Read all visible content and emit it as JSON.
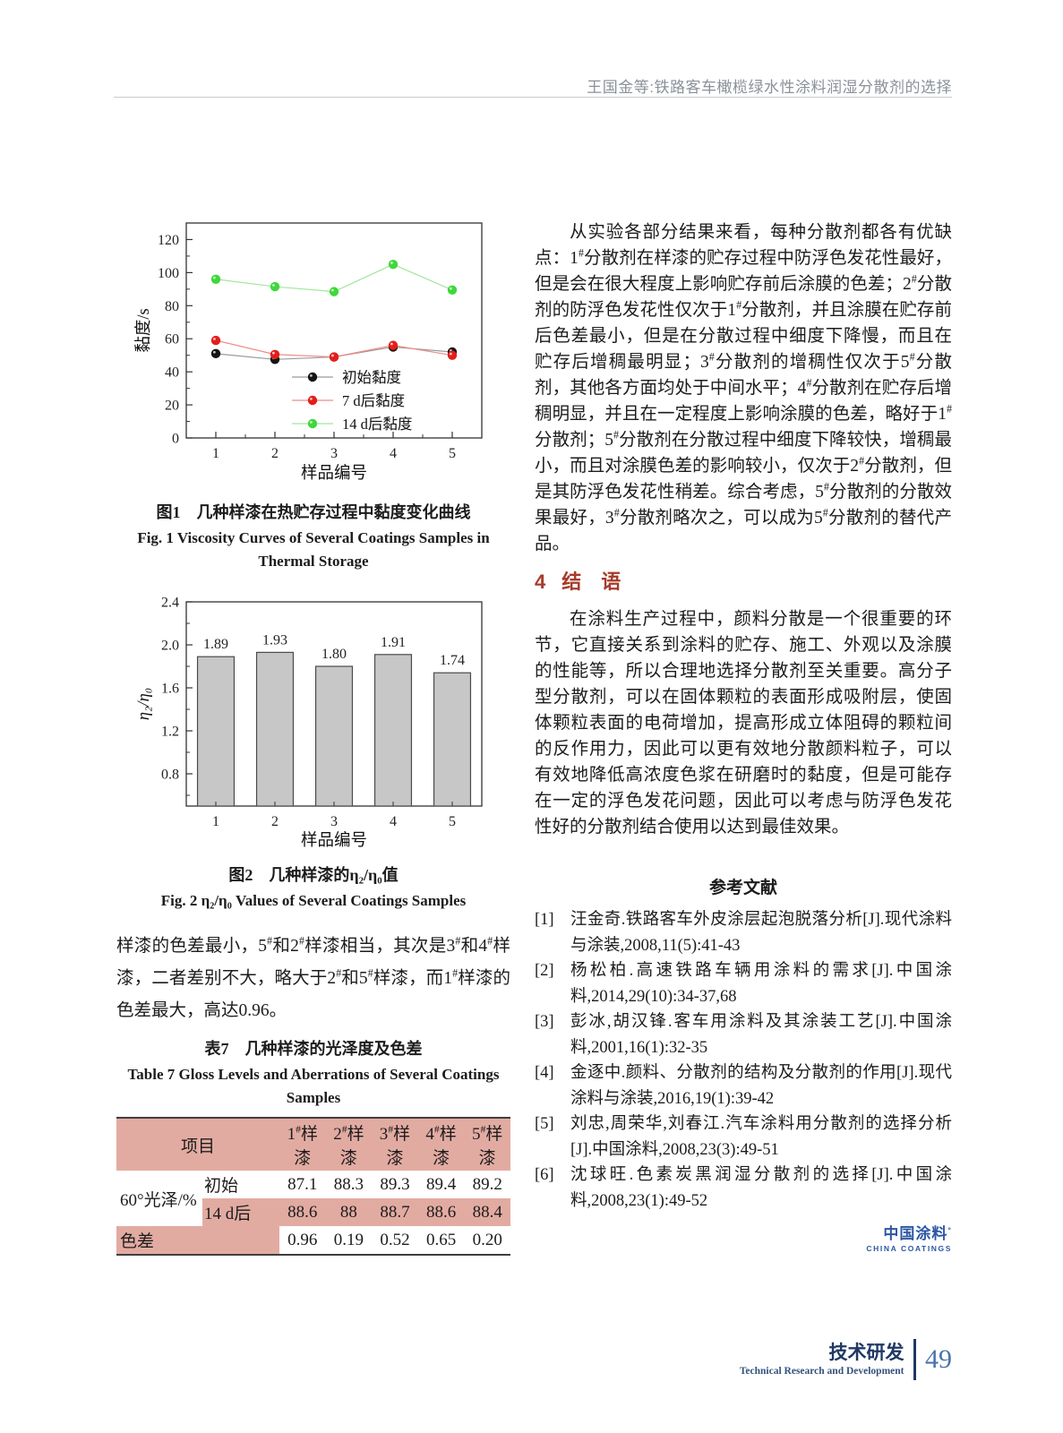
{
  "header": {
    "running_title": "王国金等:铁路客车橄榄绿水性涂料润湿分散剂的选择"
  },
  "colors": {
    "section_heading": "#a63b2a",
    "table_pink": "#e2aba2",
    "logo_blue": "#2b57a5",
    "footer_navy": "#1f3864",
    "page_number_blue": "#4a74ad"
  },
  "chart_data": [
    {
      "type": "line",
      "x": [
        1,
        2,
        3,
        4,
        5
      ],
      "xlabel": "样品编号",
      "ylabel": "黏度/s",
      "ylim": [
        0,
        130
      ],
      "yticks": [
        0,
        20,
        40,
        60,
        80,
        100,
        120
      ],
      "grid": false,
      "legend_position": "inside-bottom-right",
      "series": [
        {
          "name": "初始黏度",
          "color": "#141414",
          "line_color": "#9a9a9a",
          "values": [
            51,
            47.5,
            49,
            55,
            52
          ]
        },
        {
          "name": "7 d后黏度",
          "color": "#e31e1b",
          "line_color": "#ef8a86",
          "values": [
            59,
            50.5,
            49,
            56,
            50
          ]
        },
        {
          "name": "14 d后黏度",
          "color": "#3fd83a",
          "line_color": "#a2e79e",
          "values": [
            96,
            91.5,
            88.5,
            105,
            89.5
          ]
        }
      ]
    },
    {
      "type": "bar",
      "categories": [
        "1",
        "2",
        "3",
        "4",
        "5"
      ],
      "values": [
        1.89,
        1.93,
        1.8,
        1.91,
        1.74
      ],
      "value_labels": [
        "1.89",
        "1.93",
        "1.80",
        "1.91",
        "1.74"
      ],
      "xlabel": "样品编号",
      "ylabel": "η₂/η₀",
      "ylim": [
        0.5,
        2.4
      ],
      "yticks": [
        0.8,
        1.2,
        1.6,
        2.0,
        2.4
      ],
      "grid": false,
      "bar_color": "#c7c7c7",
      "bar_border": "#4a4a4a"
    }
  ],
  "left": {
    "fig1": {
      "caption_cn": "图1　几种样漆在热贮存过程中黏度变化曲线",
      "caption_en": "Fig. 1  Viscosity Curves of Several Coatings Samples in Thermal Storage"
    },
    "fig2": {
      "caption_cn": "图2　几种样漆的η₂/η₀值",
      "caption_en": "Fig. 2  η₂/η₀ Values of Several Coatings Samples"
    },
    "paragraph": "样漆的色差最小，5^#和2^#样漆相当，其次是3^#和4^#样漆，二者差别不大，略大于2^#和5^#样漆，而1^#样漆的色差最大，高达0.96。",
    "table7": {
      "caption_cn": "表7　几种样漆的光泽度及色差",
      "caption_en": "Table 7  Gloss Levels and Aberrations of Several Coatings Samples",
      "header": [
        "项目",
        "1^#样漆",
        "2^#样漆",
        "3^#样漆",
        "4^#样漆",
        "5^#样漆"
      ],
      "group_label": "60°光泽/%",
      "rows": [
        {
          "label": "初始",
          "values": [
            "87.1",
            "88.3",
            "89.3",
            "89.4",
            "89.2"
          ]
        },
        {
          "label": "14 d后",
          "values": [
            "88.6",
            "88",
            "88.7",
            "88.6",
            "88.4"
          ]
        }
      ],
      "aberration": {
        "label": "色差",
        "values": [
          "0.96",
          "0.19",
          "0.52",
          "0.65",
          "0.20"
        ]
      }
    }
  },
  "right": {
    "para1": "从实验各部分结果来看，每种分散剂都各有优缺点：1^#分散剂在样漆的贮存过程中防浮色发花性最好，但是会在很大程度上影响贮存前后涂膜的色差；2^#分散剂的防浮色发花性仅次于1^#分散剂，并且涂膜在贮存前后色差最小，但是在分散过程中细度下降慢，而且在贮存后增稠最明显；3^#分散剂的增稠性仅次于5^#分散剂，其他各方面均处于中间水平；4^#分散剂在贮存后增稠明显，并且在一定程度上影响涂膜的色差，略好于1^#分散剂；5^#分散剂在分散过程中细度下降较快，增稠最小，而且对涂膜色差的影响较小，仅次于2^#分散剂，但是其防浮色发花性稍差。综合考虑，5^#分散剂的分散效果最好，3^#分散剂略次之，可以成为5^#分散剂的替代产品。",
    "section4": {
      "number": "4",
      "title": "结　语",
      "body": "在涂料生产过程中，颜料分散是一个很重要的环节，它直接关系到涂料的贮存、施工、外观以及涂膜的性能等，所以合理地选择分散剂至关重要。高分子型分散剂，可以在固体颗粒的表面形成吸附层，使固体颗粒表面的电荷增加，提高形成立体阻碍的颗粒间的反作用力，因此可以更有效地分散颜料粒子，可以有效地降低高浓度色浆在研磨时的黏度，但是可能存在一定的浮色发花问题，因此可以考虑与防浮色发花性好的分散剂结合使用以达到最佳效果。"
    },
    "references": {
      "title": "参考文献",
      "items": [
        {
          "num": "[1]",
          "text": "汪金奇.铁路客车外皮涂层起泡脱落分析[J].现代涂料与涂装,2008,11(5):41-43"
        },
        {
          "num": "[2]",
          "text": "杨松柏.高速铁路车辆用涂料的需求[J].中国涂料,2014,29(10):34-37,68"
        },
        {
          "num": "[3]",
          "text": "彭冰,胡汉锋.客车用涂料及其涂装工艺[J].中国涂料,2001,16(1):32-35"
        },
        {
          "num": "[4]",
          "text": "金逐中.颜料、分散剂的结构及分散剂的作用[J].现代涂料与涂装,2016,19(1):39-42"
        },
        {
          "num": "[5]",
          "text": "刘忠,周荣华,刘春江.汽车涂料用分散剂的选择分析[J].中国涂料,2008,23(3):49-51"
        },
        {
          "num": "[6]",
          "text": "沈球旺.色素炭黑润湿分散剂的选择[J].中国涂料,2008,23(1):49-52"
        }
      ]
    },
    "logo": {
      "cn": "中国涂料",
      "sup": "°",
      "en": "CHINA COATINGS"
    }
  },
  "footer": {
    "cn": "技术研发",
    "en": "Technical Research and Development",
    "page": "49"
  }
}
